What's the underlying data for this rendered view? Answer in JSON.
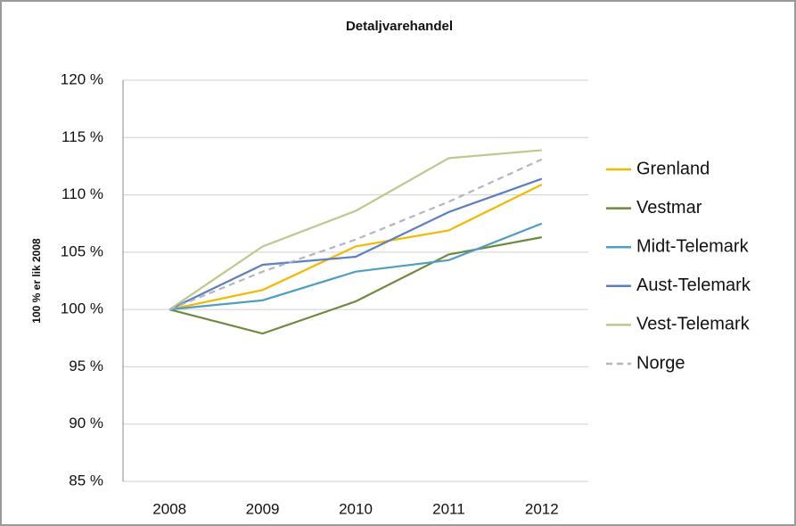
{
  "chart_data": {
    "type": "line",
    "title": "Detaljvarehandel",
    "y_label": "100 % er lik 2008",
    "categories": [
      "2008",
      "2009",
      "2010",
      "2011",
      "2012"
    ],
    "series": [
      {
        "name": "Grenland",
        "color": "#f5b800",
        "values": [
          100,
          101.7,
          105.5,
          106.9,
          110.9
        ]
      },
      {
        "name": "Vestmar",
        "color": "#6e8b3d",
        "values": [
          100,
          97.9,
          100.7,
          104.8,
          106.3
        ]
      },
      {
        "name": "Midt-Telemark",
        "color": "#4f9ec4",
        "values": [
          100,
          100.8,
          103.3,
          104.3,
          107.5
        ]
      },
      {
        "name": "Aust-Telemark",
        "color": "#5b7fc0",
        "values": [
          100,
          103.9,
          104.6,
          108.5,
          111.4
        ]
      },
      {
        "name": "Vest-Telemark",
        "color": "#bac98c",
        "values": [
          100,
          105.5,
          108.6,
          113.2,
          113.9
        ]
      },
      {
        "name": "Norge",
        "color": "#b4b4c4",
        "dashed": true,
        "values": [
          100,
          103.3,
          106.1,
          109.4,
          113.1
        ]
      }
    ],
    "ylim": [
      85,
      120
    ],
    "yticks": [
      {
        "value": 85,
        "label": "85 %"
      },
      {
        "value": 90,
        "label": "90 %"
      },
      {
        "value": 95,
        "label": "95 %"
      },
      {
        "value": 100,
        "label": "100 %"
      },
      {
        "value": 105,
        "label": "105 %"
      },
      {
        "value": 110,
        "label": "110 %"
      },
      {
        "value": 115,
        "label": "115 %"
      },
      {
        "value": 120,
        "label": "120 %"
      }
    ],
    "grid": true,
    "legend": "right"
  }
}
